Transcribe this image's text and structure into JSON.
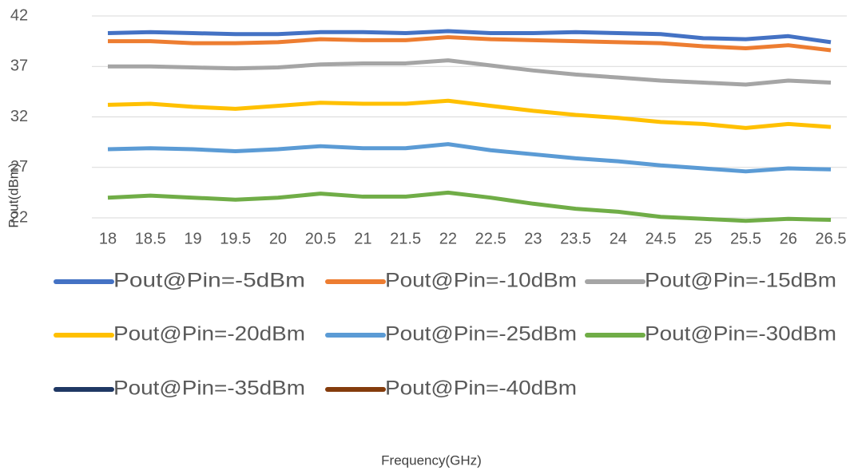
{
  "chart_data": {
    "type": "line",
    "x_label": "Frequency(GHz)",
    "y_label": "Pout(dBm)",
    "categories": [
      18,
      18.5,
      19,
      19.5,
      20,
      20.5,
      21,
      21.5,
      22,
      22.5,
      23,
      23.5,
      24,
      24.5,
      25,
      25.5,
      26,
      26.5
    ],
    "ylim": [
      22,
      42
    ],
    "yticks": [
      22,
      27,
      32,
      37,
      42
    ],
    "grid": true,
    "series": [
      {
        "name": "Pout@Pin=-5dBm",
        "color": "#4472c4",
        "values": [
          40.3,
          40.4,
          40.3,
          40.2,
          40.2,
          40.4,
          40.4,
          40.3,
          40.5,
          40.3,
          40.3,
          40.4,
          40.3,
          40.2,
          39.8,
          39.7,
          40.0,
          39.4
        ]
      },
      {
        "name": "Pout@Pin=-10dBm",
        "color": "#ed7d31",
        "values": [
          39.5,
          39.5,
          39.3,
          39.3,
          39.4,
          39.7,
          39.6,
          39.6,
          39.9,
          39.7,
          39.6,
          39.5,
          39.4,
          39.3,
          39.0,
          38.8,
          39.1,
          38.6
        ]
      },
      {
        "name": "Pout@Pin=-15dBm",
        "color": "#a5a5a5",
        "values": [
          37.0,
          37.0,
          36.9,
          36.8,
          36.9,
          37.2,
          37.3,
          37.3,
          37.6,
          37.1,
          36.6,
          36.2,
          35.9,
          35.6,
          35.4,
          35.2,
          35.6,
          35.4
        ]
      },
      {
        "name": "Pout@Pin=-20dBm",
        "color": "#ffc000",
        "values": [
          33.2,
          33.3,
          33.0,
          32.8,
          33.1,
          33.4,
          33.3,
          33.3,
          33.6,
          33.1,
          32.6,
          32.2,
          31.9,
          31.5,
          31.3,
          30.9,
          31.3,
          31.0
        ]
      },
      {
        "name": "Pout@Pin=-25dBm",
        "color": "#5b9bd5",
        "values": [
          28.8,
          28.9,
          28.8,
          28.6,
          28.8,
          29.1,
          28.9,
          28.9,
          29.3,
          28.7,
          28.3,
          27.9,
          27.6,
          27.2,
          26.9,
          26.6,
          26.9,
          26.8
        ]
      },
      {
        "name": "Pout@Pin=-30dBm",
        "color": "#70ad47",
        "values": [
          24.0,
          24.2,
          24.0,
          23.8,
          24.0,
          24.4,
          24.1,
          24.1,
          24.5,
          24.0,
          23.4,
          22.9,
          22.6,
          22.1,
          21.9,
          21.7,
          21.9,
          21.8
        ]
      },
      {
        "name": "Pout@Pin=-35dBm",
        "color": "#1f3864",
        "values": [
          null,
          null,
          null,
          null,
          null,
          null,
          null,
          null,
          null,
          null,
          null,
          null,
          null,
          null,
          null,
          null,
          null,
          null
        ]
      },
      {
        "name": "Pout@Pin=-40dBm",
        "color": "#843c0c",
        "values": [
          null,
          null,
          null,
          null,
          null,
          null,
          null,
          null,
          null,
          null,
          null,
          null,
          null,
          null,
          null,
          null,
          null,
          null
        ]
      }
    ]
  }
}
